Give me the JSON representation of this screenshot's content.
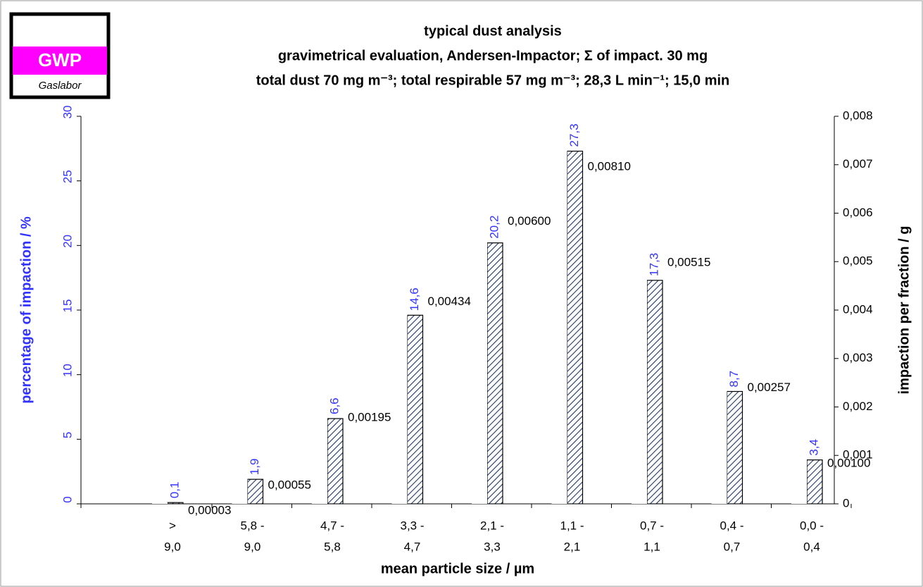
{
  "chart_data": {
    "type": "bar",
    "logo": {
      "text": "GWP",
      "subtitle": "Gaslabor"
    },
    "title": [
      "typical dust analysis",
      "gravimetrical evaluation, Andersen-Impactor; Σ  of impact. 30 mg",
      "total dust 70 mg m⁻³;  total respirable 57 mg m⁻³; 28,3 L min⁻¹; 15,0 min"
    ],
    "x_label": "mean particle size / µm",
    "y_label": "percentage of impaction / %",
    "y2_label": "impaction per fraction / g",
    "categories": [
      [
        ">",
        "9,0"
      ],
      [
        "5,8 -",
        "9,0"
      ],
      [
        "4,7 -",
        "5,8"
      ],
      [
        "3,3 -",
        "4,7"
      ],
      [
        "2,1 -",
        "3,3"
      ],
      [
        "1,1 -",
        "2,1"
      ],
      [
        "0,7 -",
        "1,1"
      ],
      [
        "0,4 -",
        "0,7"
      ],
      [
        "0,0 -",
        "0,4"
      ]
    ],
    "series": [
      {
        "name": "percentage of impaction",
        "color": "#1f3864",
        "axis": "y",
        "values": [
          0.1,
          1.9,
          6.6,
          14.6,
          20.2,
          27.3,
          17.3,
          8.7,
          3.4
        ],
        "value_labels": [
          "0,1",
          "1,9",
          "6,6",
          "14,6",
          "20,2",
          "27,3",
          "17,3",
          "8,7",
          "3,4"
        ]
      },
      {
        "name": "impaction per fraction",
        "color": "#ffffff",
        "axis": "y2",
        "values": [
          3e-05,
          0.00055,
          0.00195,
          0.00434,
          0.006,
          0.0081,
          0.00515,
          0.00257,
          0.001
        ],
        "value_labels": [
          "0,00003",
          "0,00055",
          "0,00195",
          "0,00434",
          "0,00600",
          "0,00810",
          "0,00515",
          "0,00257",
          "0,00100"
        ]
      }
    ],
    "ylim": [
      0,
      30
    ],
    "yticks": [
      0,
      5,
      10,
      15,
      20,
      25,
      30
    ],
    "y2lim": [
      0,
      0.008
    ],
    "y2ticks": [
      0,
      {
        "value": 0.001,
        "label": "0,001"
      },
      {
        "value": 0.002,
        "label": "0,002"
      },
      {
        "value": 0.003,
        "label": "0,003"
      },
      {
        "value": 0.004,
        "label": "0,004"
      },
      {
        "value": 0.005,
        "label": "0,005"
      },
      {
        "value": 0.006,
        "label": "0,006"
      },
      {
        "value": 0.007,
        "label": "0,007"
      },
      {
        "value": 0.008,
        "label": "0,008"
      }
    ],
    "grid": false
  }
}
